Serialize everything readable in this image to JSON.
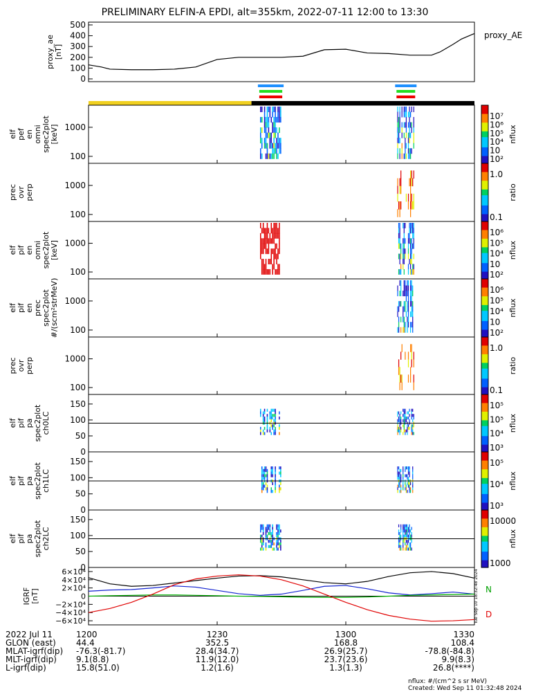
{
  "title": "PRELIMINARY ELFIN-A EPDI, alt=355km, 2022-07-11 12:00 to 13:30",
  "chart_data": [
    {
      "type": "line",
      "panel": "proxy_ae",
      "ylabel": "proxy_ae",
      "yunit": "[nT]",
      "ylim": [
        0,
        500
      ],
      "yticks": [
        "500",
        "400",
        "300",
        "200",
        "100",
        "0"
      ],
      "legend": "proxy_AE",
      "x_minutes": [
        0,
        3,
        5,
        10,
        15,
        20,
        25,
        30,
        35,
        40,
        45,
        50,
        55,
        60,
        65,
        70,
        75,
        80,
        82,
        85,
        87,
        90
      ],
      "values": [
        130,
        110,
        90,
        85,
        85,
        90,
        110,
        180,
        200,
        200,
        200,
        210,
        270,
        275,
        240,
        235,
        220,
        220,
        250,
        320,
        370,
        420
      ]
    },
    {
      "type": "heatmap",
      "panel": "elf_pef_en_spec2plot_omni",
      "ylabel": [
        "elf",
        "pef",
        "en",
        "omni",
        "spec2plot"
      ],
      "yunit": "[keV]",
      "ylog": true,
      "yticks": [
        "1000",
        "100"
      ],
      "colorbar_label": "nflux",
      "colorbar_ticks": [
        "10⁷",
        "10⁶",
        "10⁵",
        "10⁴",
        "10⁳",
        "10²"
      ],
      "science_zones_minutes": [
        [
          39.5,
          45.5
        ],
        [
          71.5,
          76.5
        ]
      ]
    },
    {
      "type": "heatmap",
      "panel": "prec_ovr_perp_1",
      "ylabel": [
        "prec",
        "ovr",
        "perp"
      ],
      "ylog": true,
      "yticks": [
        "1000",
        "100"
      ],
      "colorbar_label": "ratio",
      "colorbar_ticks": [
        "1.0",
        "0.1"
      ]
    },
    {
      "type": "heatmap",
      "panel": "elf_pif_en_spec2plot_omni",
      "ylabel": [
        "elf",
        "pif",
        "en",
        "omni",
        "spec2plot"
      ],
      "yunit": "[keV]",
      "ylog": true,
      "yticks": [
        "1000",
        "100"
      ],
      "colorbar_label": "nflux",
      "colorbar_ticks": [
        "10⁶",
        "10⁵",
        "10⁴",
        "10⁳",
        "10²"
      ]
    },
    {
      "type": "heatmap",
      "panel": "elf_pif_en_spec2plot_prec",
      "ylabel": [
        "elf",
        "pif",
        "en",
        "prec",
        "spec2plot"
      ],
      "yunit": "#/(scm²strMeV)",
      "ylog": true,
      "yticks": [
        "1000",
        "100"
      ],
      "colorbar_label": "nflux",
      "colorbar_ticks": [
        "10⁶",
        "10⁵",
        "10⁴",
        "10⁳",
        "10²"
      ]
    },
    {
      "type": "heatmap",
      "panel": "prec_ovr_perp_2",
      "ylabel": [
        "prec",
        "ovr",
        "perp"
      ],
      "ylog": true,
      "yticks": [
        "1000",
        "100"
      ],
      "colorbar_label": "ratio",
      "colorbar_ticks": [
        "1.0",
        "0.1"
      ]
    },
    {
      "type": "heatmap",
      "panel": "elf_pif_pa_spec2plot_ch0LC",
      "ylabel": [
        "elf",
        "pif",
        "pa",
        "spec2plot",
        "ch0LC"
      ],
      "ylim": [
        0,
        180
      ],
      "yticks": [
        "150",
        "100",
        "50",
        "0"
      ],
      "colorbar_label": "nflux",
      "colorbar_ticks": [
        "10⁵",
        "10⁵",
        "10⁴",
        "10³"
      ]
    },
    {
      "type": "heatmap",
      "panel": "elf_pif_pa_spec2plot_ch1LC",
      "ylabel": [
        "elf",
        "pif",
        "pa",
        "spec2plot",
        "ch1LC"
      ],
      "ylim": [
        0,
        180
      ],
      "yticks": [
        "150",
        "100",
        "50",
        "0"
      ],
      "colorbar_label": "nflux",
      "colorbar_ticks": [
        "10⁵",
        "10⁴",
        "10³"
      ]
    },
    {
      "type": "heatmap",
      "panel": "elf_pif_pa_spec2plot_ch2LC",
      "ylabel": [
        "elf",
        "pif",
        "pa",
        "spec2plot",
        "ch2LC"
      ],
      "ylim": [
        0,
        180
      ],
      "yticks": [
        "150",
        "100",
        "50",
        "0"
      ],
      "colorbar_label": "nflux",
      "colorbar_ticks": [
        "10000",
        "1000"
      ]
    },
    {
      "type": "line",
      "panel": "IGRF",
      "ylabel": "IGRF",
      "yunit": "[nT]",
      "ylim": [
        -70000,
        70000
      ],
      "yticks": [
        "6×10⁴",
        "4×10⁴",
        "2×10⁴",
        "0",
        "−2×10⁴",
        "−4×10⁴",
        "−6×10⁴"
      ],
      "legend": [
        "N",
        "D"
      ],
      "x_minutes": [
        0,
        5,
        10,
        15,
        20,
        25,
        30,
        35,
        40,
        45,
        50,
        55,
        60,
        65,
        70,
        75,
        80,
        85,
        90
      ],
      "series": [
        {
          "name": "black",
          "color": "#000000",
          "values": [
            45000,
            30000,
            24000,
            26000,
            32000,
            38000,
            44000,
            49000,
            50000,
            47000,
            40000,
            33000,
            30000,
            36000,
            48000,
            57000,
            60000,
            55000,
            44000
          ]
        },
        {
          "name": "blue",
          "color": "#1020d0",
          "values": [
            12000,
            15000,
            16000,
            20000,
            25000,
            22000,
            14000,
            6000,
            2000,
            5000,
            14000,
            24000,
            26000,
            18000,
            8000,
            3000,
            6000,
            10000,
            5000
          ]
        },
        {
          "name": "green",
          "color": "#00b000",
          "values": [
            0,
            1000,
            2000,
            3000,
            3000,
            2000,
            1000,
            0,
            -500,
            -1500,
            -2500,
            -3000,
            -3000,
            -2000,
            0,
            2000,
            3000,
            4000,
            5000
          ]
        },
        {
          "name": "red",
          "color": "#e00000",
          "values": [
            -40000,
            -30000,
            -15000,
            5000,
            28000,
            42000,
            49000,
            52000,
            49000,
            40000,
            25000,
            5000,
            -15000,
            -33000,
            -47000,
            -56000,
            -61000,
            -60000,
            -57000
          ]
        }
      ]
    }
  ],
  "xaxis": {
    "ticks": [
      "1200",
      "1230",
      "1300",
      "1330"
    ],
    "rows": [
      {
        "label": "2022 Jul 11",
        "values": [
          "1200",
          "1230",
          "1300",
          "1330"
        ]
      },
      {
        "label": "GLON (east)",
        "values": [
          "44.4",
          "352.5",
          "168.8",
          "108.4"
        ]
      },
      {
        "label": "MLAT-igrf(dip)",
        "values": [
          "-76.3(-81.7)",
          "28.4(34.7)",
          "26.9(25.7)",
          "-78.8(-84.8)"
        ]
      },
      {
        "label": "MLT-igrf(dip)",
        "values": [
          "9.1(8.8)",
          "11.9(12.0)",
          "23.7(23.6)",
          "9.9(8.3)"
        ]
      },
      {
        "label": "L-igrf(dip)",
        "values": [
          "15.8(51.0)",
          "1.2(1.6)",
          "1.3(1.3)",
          "26.8(****)"
        ]
      }
    ]
  },
  "footer": {
    "nflux_note": "nflux: #/(cm^2 s sr MeV)",
    "created": "Created: Wed Sep 11 01:32:48 2024",
    "timestamp_vertical": "Tue Sep 10 18:32:48 2024"
  }
}
